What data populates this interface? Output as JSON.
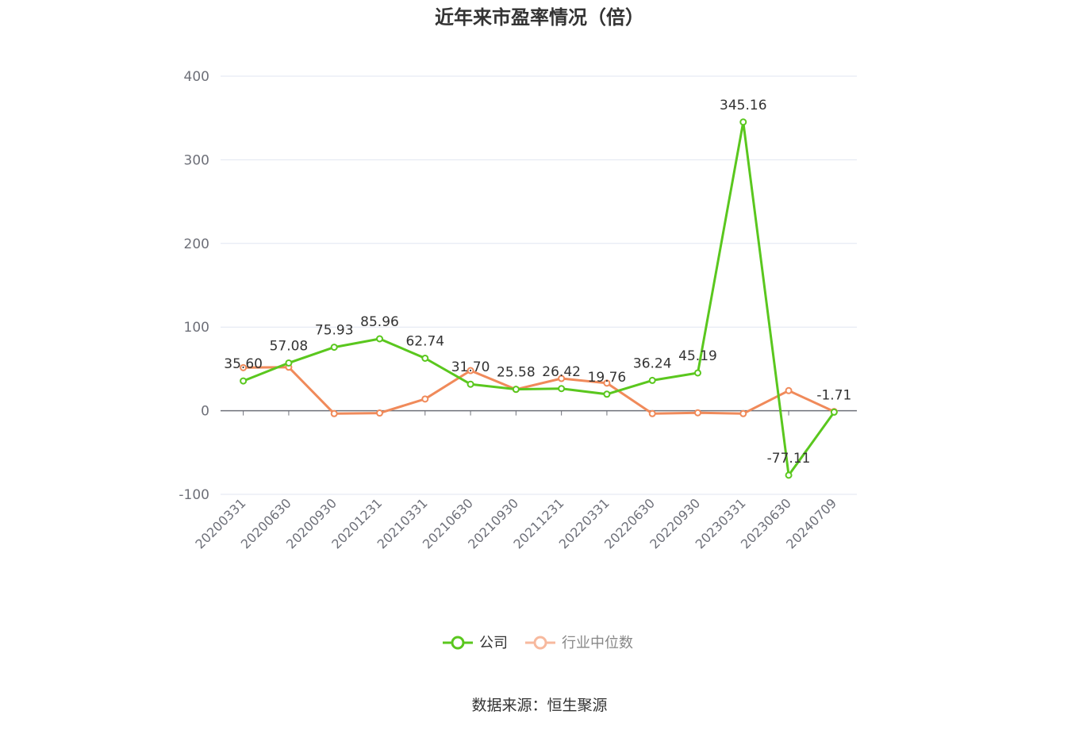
{
  "chart_data": {
    "type": "line",
    "title": "近年来市盈率情况（倍）",
    "xlabel": "",
    "ylabel": "",
    "categories": [
      "20200331",
      "20200630",
      "20200930",
      "20201231",
      "20210331",
      "20210630",
      "20210930",
      "20211231",
      "20220331",
      "20220630",
      "20220930",
      "20230331",
      "20230630",
      "20240709"
    ],
    "yticks": [
      400,
      300,
      200,
      100,
      0,
      -100
    ],
    "ylim": [
      -100,
      400
    ],
    "grid": true,
    "legend_position": "bottom-center",
    "series": [
      {
        "name": "公司",
        "color": "#5ac71e",
        "values": [
          35.6,
          57.08,
          75.93,
          85.96,
          62.74,
          31.7,
          25.58,
          26.42,
          19.76,
          36.24,
          45.19,
          345.16,
          -77.11,
          -1.71
        ],
        "labels": [
          "35.60",
          "57.08",
          "75.93",
          "85.96",
          "62.74",
          "31.70",
          "25.58",
          "26.42",
          "19.76",
          "36.24",
          "45.19",
          "345.16",
          "-77.11",
          "-1.71"
        ]
      },
      {
        "name": "行业中位数",
        "color": "#f08a5a",
        "values": [
          51.5,
          52.0,
          -3.5,
          -2.8,
          14.0,
          48.0,
          25.5,
          38.5,
          33.0,
          -3.5,
          -2.5,
          -3.5,
          24.0,
          -1.0
        ]
      }
    ]
  },
  "source": "数据来源：恒生聚源"
}
